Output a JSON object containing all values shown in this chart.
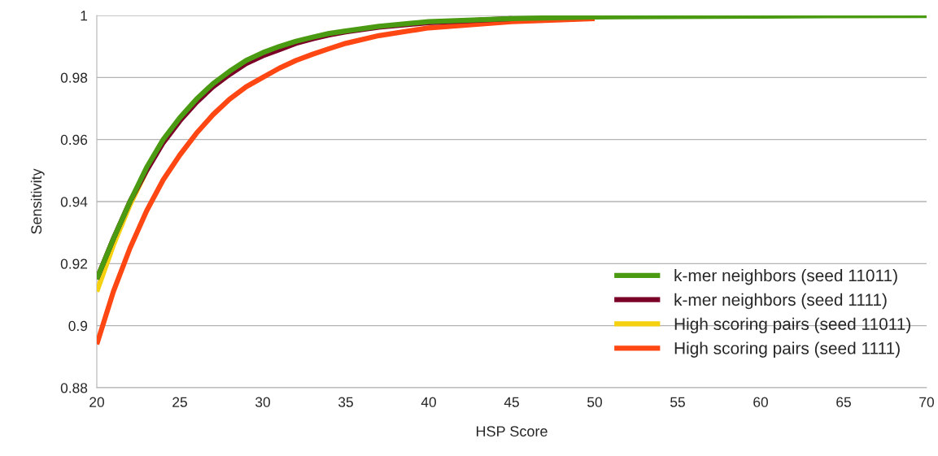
{
  "chart_data": {
    "type": "line",
    "xlabel": "HSP Score",
    "ylabel": "Sensitivity",
    "x": [
      20,
      21,
      22,
      23,
      24,
      25,
      26,
      27,
      28,
      29,
      30,
      31,
      32,
      33,
      34,
      35,
      37,
      40,
      45,
      50,
      60,
      70
    ],
    "series": [
      {
        "name": "k-mer neighbors (seed 11011)",
        "color": "#4a9a12",
        "values": [
          0.915,
          0.928,
          0.94,
          0.951,
          0.96,
          0.967,
          0.973,
          0.978,
          0.982,
          0.9855,
          0.988,
          0.99,
          0.9917,
          0.993,
          0.9942,
          0.995,
          0.9965,
          0.998,
          0.999,
          0.9995,
          0.9998,
          1.0
        ]
      },
      {
        "name": "k-mer neighbors (seed 1111)",
        "color": "#7b0027",
        "values": [
          0.915,
          0.928,
          0.94,
          0.95,
          0.959,
          0.966,
          0.972,
          0.977,
          0.981,
          0.9845,
          0.987,
          0.989,
          0.991,
          0.9925,
          0.9937,
          0.9947,
          0.9962,
          0.9977,
          0.999,
          null,
          null,
          null
        ]
      },
      {
        "name": "High scoring pairs (seed 11011)",
        "color": "#f5d10f",
        "values": [
          0.911,
          0.926,
          0.939,
          0.95,
          null,
          null,
          null,
          null,
          null,
          null,
          null,
          null,
          null,
          null,
          null,
          null,
          null,
          null,
          null,
          null,
          null,
          null
        ]
      },
      {
        "name": "High scoring pairs (seed 1111)",
        "color": "#ff4713",
        "values": [
          0.894,
          0.911,
          0.925,
          0.937,
          0.947,
          0.955,
          0.962,
          0.968,
          0.973,
          0.977,
          0.98,
          0.983,
          0.9855,
          0.9875,
          0.9893,
          0.991,
          0.9935,
          0.996,
          0.998,
          0.999,
          null,
          null
        ]
      }
    ],
    "xlim": [
      20,
      70
    ],
    "xticks": [
      20,
      25,
      30,
      35,
      40,
      45,
      50,
      55,
      60,
      65,
      70
    ],
    "ylim": [
      0.88,
      1
    ],
    "yticks": [
      {
        "value": 0.88,
        "label": "0.88"
      },
      {
        "value": 0.9,
        "label": "0.9"
      },
      {
        "value": 0.92,
        "label": "0.92"
      },
      {
        "value": 0.94,
        "label": "0.94"
      },
      {
        "value": 0.96,
        "label": "0.96"
      },
      {
        "value": 0.98,
        "label": "0.98"
      },
      {
        "value": 1,
        "label": "1"
      }
    ],
    "grid": "y",
    "legend": "bottom right",
    "marker": "none",
    "line_style": "solid"
  }
}
